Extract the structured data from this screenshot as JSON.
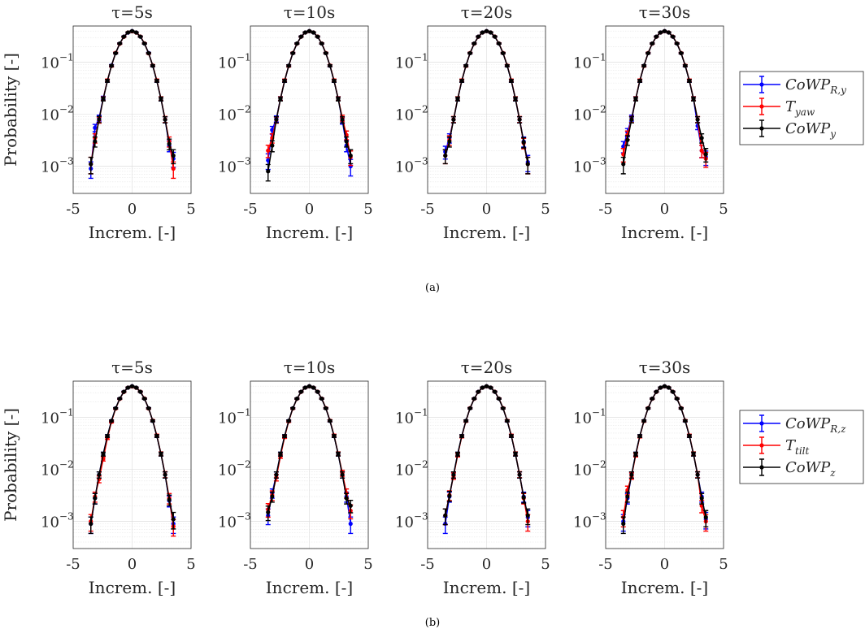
{
  "captions": [
    "(a)",
    "(b)"
  ],
  "chart_data": {
    "type": "line",
    "subtype": "errorbar, log-y",
    "xlabel": "Increm. [-]",
    "ylabel": "Probability [-]",
    "xlim": [
      -5,
      5
    ],
    "ylim": [
      0.0003,
      0.5
    ],
    "yscale": "log",
    "xticks": [
      "-5",
      "0",
      "5"
    ],
    "yticks": [
      {
        "base": "10",
        "exp": "−1",
        "value": 0.1
      },
      {
        "base": "10",
        "exp": "−2",
        "value": 0.01
      },
      {
        "base": "10",
        "exp": "−3",
        "value": 0.001
      }
    ],
    "grid": true,
    "x": [
      -3.5,
      -3.15,
      -2.8,
      -2.45,
      -2.1,
      -1.75,
      -1.4,
      -1.05,
      -0.7,
      -0.35,
      0,
      0.35,
      0.7,
      1.05,
      1.4,
      1.75,
      2.1,
      2.45,
      2.8,
      3.15,
      3.5
    ],
    "rows": [
      {
        "caption": "(a)",
        "legend": [
          {
            "name": "CoWP",
            "sub": "R,y",
            "color": "#0000ff"
          },
          {
            "name": "T",
            "sub": "yaw",
            "color": "#ff0000"
          },
          {
            "name": "CoWP",
            "sub": "y",
            "color": "#000000"
          }
        ],
        "legend_placement": "right",
        "panels": [
          {
            "title": "τ=5s",
            "series": [
              [
                0.0009,
                0.0055,
                0.0085,
                0.0205,
                0.044,
                0.087,
                0.15,
                0.23,
                0.312,
                0.372,
                0.399,
                0.375,
                0.312,
                0.23,
                0.151,
                0.086,
                0.044,
                0.0198,
                0.0079,
                0.0025,
                0.0014
              ],
              [
                0.0011,
                0.0035,
                0.0078,
                0.02,
                0.045,
                0.085,
                0.152,
                0.228,
                0.31,
                0.376,
                0.396,
                0.373,
                0.314,
                0.232,
                0.149,
                0.087,
                0.045,
                0.02,
                0.008,
                0.003,
                0.0009
              ],
              [
                0.0011,
                0.003,
                0.008,
                0.0198,
                0.044,
                0.086,
                0.15,
                0.23,
                0.312,
                0.375,
                0.399,
                0.375,
                0.312,
                0.23,
                0.15,
                0.086,
                0.044,
                0.0198,
                0.0079,
                0.0027,
                0.0016
              ]
            ]
          },
          {
            "title": "τ=10s",
            "series": [
              [
                0.0013,
                0.005,
                0.0082,
                0.02,
                0.044,
                0.086,
                0.15,
                0.23,
                0.312,
                0.375,
                0.399,
                0.375,
                0.312,
                0.23,
                0.15,
                0.086,
                0.044,
                0.02,
                0.0075,
                0.0025,
                0.001
              ],
              [
                0.002,
                0.0035,
                0.0078,
                0.02,
                0.045,
                0.085,
                0.151,
                0.229,
                0.311,
                0.374,
                0.398,
                0.376,
                0.313,
                0.231,
                0.151,
                0.087,
                0.045,
                0.02,
                0.0085,
                0.004,
                0.0015
              ],
              [
                0.0008,
                0.0025,
                0.0079,
                0.0198,
                0.044,
                0.086,
                0.15,
                0.23,
                0.312,
                0.375,
                0.399,
                0.375,
                0.312,
                0.23,
                0.15,
                0.086,
                0.044,
                0.0198,
                0.0079,
                0.003,
                0.0016
              ]
            ]
          },
          {
            "title": "τ=20s",
            "series": [
              [
                0.0019,
                0.0035,
                0.0079,
                0.0198,
                0.044,
                0.086,
                0.15,
                0.23,
                0.312,
                0.375,
                0.399,
                0.375,
                0.312,
                0.23,
                0.15,
                0.086,
                0.044,
                0.0198,
                0.0079,
                0.003,
                0.0012
              ],
              [
                0.0016,
                0.0032,
                0.008,
                0.02,
                0.045,
                0.085,
                0.151,
                0.229,
                0.311,
                0.374,
                0.398,
                0.376,
                0.313,
                0.231,
                0.151,
                0.087,
                0.045,
                0.02,
                0.008,
                0.0028,
                0.0011
              ],
              [
                0.0016,
                0.003,
                0.0079,
                0.0198,
                0.044,
                0.086,
                0.15,
                0.23,
                0.312,
                0.375,
                0.399,
                0.375,
                0.312,
                0.23,
                0.15,
                0.086,
                0.044,
                0.0198,
                0.0079,
                0.0029,
                0.0011
              ]
            ]
          },
          {
            "title": "τ=30s",
            "series": [
              [
                0.0024,
                0.0045,
                0.0085,
                0.02,
                0.044,
                0.086,
                0.15,
                0.23,
                0.312,
                0.375,
                0.399,
                0.375,
                0.312,
                0.23,
                0.15,
                0.086,
                0.044,
                0.02,
                0.006,
                0.002,
                0.0015
              ],
              [
                0.0017,
                0.004,
                0.008,
                0.02,
                0.045,
                0.085,
                0.151,
                0.229,
                0.311,
                0.374,
                0.398,
                0.376,
                0.313,
                0.231,
                0.151,
                0.087,
                0.045,
                0.02,
                0.008,
                0.002,
                0.0014
              ],
              [
                0.0011,
                0.0032,
                0.0079,
                0.0198,
                0.044,
                0.086,
                0.15,
                0.23,
                0.312,
                0.375,
                0.399,
                0.375,
                0.312,
                0.23,
                0.15,
                0.086,
                0.044,
                0.0198,
                0.0079,
                0.0035,
                0.0017
              ]
            ]
          }
        ]
      },
      {
        "caption": "(b)",
        "legend": [
          {
            "name": "CoWP",
            "sub": "R,z",
            "color": "#0000ff"
          },
          {
            "name": "T",
            "sub": "tilt",
            "color": "#ff0000"
          },
          {
            "name": "CoWP",
            "sub": "z",
            "color": "#000000"
          }
        ],
        "legend_placement": "right",
        "panels": [
          {
            "title": "τ=5s",
            "series": [
              [
                0.0009,
                0.0028,
                0.0079,
                0.0198,
                0.044,
                0.086,
                0.15,
                0.23,
                0.312,
                0.375,
                0.399,
                0.375,
                0.312,
                0.23,
                0.15,
                0.086,
                0.044,
                0.0198,
                0.0079,
                0.0025,
                0.0009
              ],
              [
                0.001,
                0.003,
                0.0065,
                0.016,
                0.04,
                0.082,
                0.148,
                0.228,
                0.31,
                0.376,
                0.396,
                0.373,
                0.314,
                0.232,
                0.149,
                0.087,
                0.045,
                0.02,
                0.008,
                0.0028,
                0.0008
              ],
              [
                0.0009,
                0.0028,
                0.0079,
                0.0198,
                0.044,
                0.086,
                0.15,
                0.23,
                0.312,
                0.375,
                0.399,
                0.375,
                0.312,
                0.23,
                0.15,
                0.086,
                0.044,
                0.0198,
                0.0079,
                0.0026,
                0.0011
              ]
            ]
          },
          {
            "title": "τ=10s",
            "series": [
              [
                0.0013,
                0.0035,
                0.0079,
                0.0198,
                0.044,
                0.086,
                0.15,
                0.23,
                0.312,
                0.375,
                0.399,
                0.375,
                0.312,
                0.23,
                0.15,
                0.086,
                0.044,
                0.0198,
                0.0079,
                0.003,
                0.0009
              ],
              [
                0.0017,
                0.0032,
                0.007,
                0.018,
                0.042,
                0.084,
                0.149,
                0.229,
                0.311,
                0.374,
                0.398,
                0.376,
                0.313,
                0.231,
                0.151,
                0.087,
                0.045,
                0.02,
                0.0085,
                0.0035,
                0.0016
              ],
              [
                0.0015,
                0.003,
                0.0079,
                0.0198,
                0.044,
                0.086,
                0.15,
                0.23,
                0.312,
                0.375,
                0.399,
                0.375,
                0.312,
                0.23,
                0.15,
                0.086,
                0.044,
                0.0198,
                0.0079,
                0.0028,
                0.002
              ]
            ]
          },
          {
            "title": "τ=20s",
            "series": [
              [
                0.0009,
                0.003,
                0.0079,
                0.0198,
                0.044,
                0.086,
                0.15,
                0.23,
                0.312,
                0.375,
                0.399,
                0.375,
                0.312,
                0.23,
                0.15,
                0.086,
                0.044,
                0.0198,
                0.0079,
                0.003,
                0.0012
              ],
              [
                0.0013,
                0.0032,
                0.0075,
                0.019,
                0.043,
                0.085,
                0.151,
                0.229,
                0.311,
                0.374,
                0.398,
                0.376,
                0.313,
                0.231,
                0.151,
                0.087,
                0.045,
                0.02,
                0.008,
                0.0028,
                0.001
              ],
              [
                0.0013,
                0.0031,
                0.0079,
                0.0198,
                0.044,
                0.086,
                0.15,
                0.23,
                0.312,
                0.375,
                0.399,
                0.375,
                0.312,
                0.23,
                0.15,
                0.086,
                0.044,
                0.0198,
                0.0079,
                0.0029,
                0.0013
              ]
            ]
          },
          {
            "title": "τ=30s",
            "series": [
              [
                0.001,
                0.0028,
                0.0079,
                0.0198,
                0.044,
                0.086,
                0.15,
                0.23,
                0.312,
                0.375,
                0.399,
                0.375,
                0.312,
                0.23,
                0.15,
                0.086,
                0.044,
                0.0198,
                0.0079,
                0.003,
                0.0011
              ],
              [
                0.0012,
                0.004,
                0.0075,
                0.019,
                0.043,
                0.085,
                0.151,
                0.229,
                0.311,
                0.374,
                0.398,
                0.376,
                0.313,
                0.231,
                0.151,
                0.087,
                0.045,
                0.02,
                0.008,
                0.002,
                0.001
              ],
              [
                0.0009,
                0.003,
                0.0079,
                0.0198,
                0.044,
                0.086,
                0.15,
                0.23,
                0.312,
                0.375,
                0.399,
                0.375,
                0.312,
                0.23,
                0.15,
                0.086,
                0.044,
                0.0198,
                0.0079,
                0.0028,
                0.0012
              ]
            ]
          }
        ]
      }
    ]
  }
}
